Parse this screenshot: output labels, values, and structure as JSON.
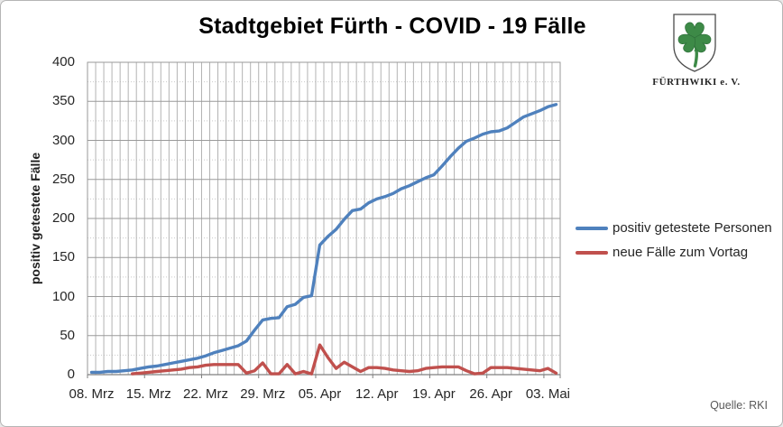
{
  "logo": {
    "org": "FÜRTHWIKI e. V.",
    "shield_green": "#3d8a47"
  },
  "source_note": "Quelle: RKI",
  "chart_data": {
    "type": "line",
    "title": "Stadtgebiet Fürth - COVID - 19 Fälle",
    "ylabel": "positiv getestete Fälle",
    "xlabel": "",
    "ylim": [
      0,
      400
    ],
    "yticks_major": [
      0,
      50,
      100,
      150,
      200,
      250,
      300,
      350,
      400
    ],
    "yticks_minor_step": 25,
    "grid": {
      "vertical_per_day": true,
      "h_major": "solid",
      "h_minor": "dotted"
    },
    "legend_position": "right",
    "num_days": 58,
    "x_start_label": "08. Mrz",
    "x_tick_labels": [
      "08. Mrz",
      "15. Mrz",
      "22. Mrz",
      "29. Mrz",
      "05. Apr",
      "12. Apr",
      "19. Apr",
      "26. Apr",
      "03. Mai"
    ],
    "x_tick_day_index": [
      0,
      7,
      14,
      21,
      28,
      35,
      42,
      49,
      56
    ],
    "series": [
      {
        "id": "positiv-getestete-personen",
        "name": "positiv getestete Personen",
        "color": "#4f81bd",
        "start_day": 0,
        "values": [
          3,
          3,
          4,
          4,
          5,
          6,
          8,
          10,
          11,
          13,
          15,
          17,
          19,
          21,
          24,
          28,
          31,
          34,
          37,
          43,
          57,
          70,
          72,
          73,
          87,
          90,
          99,
          101,
          166,
          177,
          186,
          199,
          210,
          212,
          220,
          225,
          228,
          232,
          238,
          242,
          247,
          252,
          256,
          267,
          279,
          290,
          299,
          303,
          308,
          311,
          312,
          316,
          323,
          330,
          334,
          338,
          343,
          346
        ]
      },
      {
        "id": "neue-faelle-zum-vortag",
        "name": "neue Fälle zum Vortag",
        "color": "#c0504d",
        "start_day": 5,
        "values": [
          1,
          2,
          3,
          4,
          5,
          6,
          7,
          9,
          10,
          12,
          13,
          13,
          13,
          13,
          2,
          5,
          15,
          1,
          1,
          13,
          1,
          4,
          1,
          38,
          22,
          8,
          16,
          10,
          4,
          9,
          9,
          8,
          6,
          5,
          4,
          5,
          8,
          9,
          10,
          10,
          10,
          5,
          1,
          2,
          9,
          9,
          9,
          8,
          7,
          6,
          5,
          8,
          2
        ]
      }
    ]
  }
}
